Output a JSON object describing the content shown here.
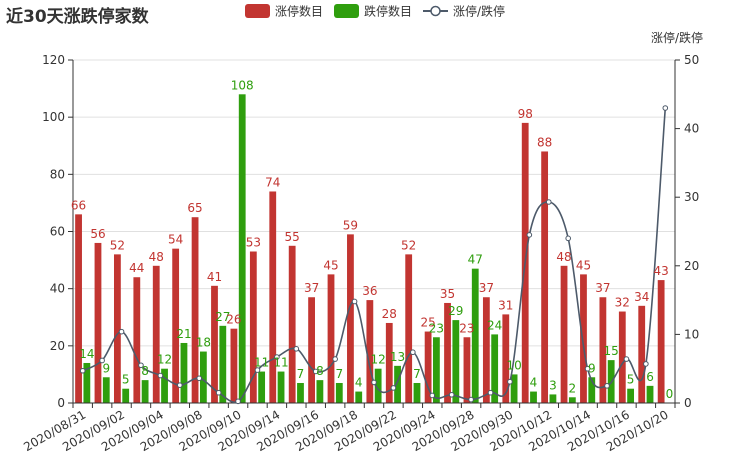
{
  "chart_data": {
    "type": "bar",
    "title": "近30天涨跌停家数",
    "colors": {
      "up": "#c23531",
      "down": "#2f9e0e",
      "ratio": "#4d5a6a"
    },
    "legend": {
      "position": "top-center"
    },
    "categories": [
      "2020/08/31",
      "2020/09/01",
      "2020/09/02",
      "2020/09/03",
      "2020/09/04",
      "2020/09/07",
      "2020/09/08",
      "2020/09/09",
      "2020/09/10",
      "2020/09/11",
      "2020/09/14",
      "2020/09/15",
      "2020/09/16",
      "2020/09/17",
      "2020/09/18",
      "2020/09/21",
      "2020/09/22",
      "2020/09/23",
      "2020/09/24",
      "2020/09/25",
      "2020/09/28",
      "2020/09/29",
      "2020/09/30",
      "2020/10/09",
      "2020/10/12",
      "2020/10/13",
      "2020/10/14",
      "2020/10/15",
      "2020/10/16",
      "2020/10/19",
      "2020/10/20"
    ],
    "x_tick_labels": [
      "2020/08/31",
      "2020/09/02",
      "2020/09/04",
      "2020/09/08",
      "2020/09/10",
      "2020/09/14",
      "2020/09/16",
      "2020/09/18",
      "2020/09/22",
      "2020/09/24",
      "2020/09/28",
      "2020/09/30",
      "2020/10/12",
      "2020/10/14",
      "2020/10/16",
      "2020/10/20"
    ],
    "series": [
      {
        "name": "涨停数目",
        "type": "bar",
        "axis": "left",
        "values": [
          66,
          56,
          52,
          44,
          48,
          54,
          65,
          41,
          26,
          53,
          74,
          55,
          37,
          45,
          59,
          36,
          28,
          52,
          25,
          35,
          23,
          37,
          31,
          98,
          88,
          48,
          45,
          37,
          32,
          34,
          43
        ]
      },
      {
        "name": "跌停数目",
        "type": "bar",
        "axis": "left",
        "values": [
          14,
          9,
          5,
          8,
          12,
          21,
          18,
          27,
          108,
          11,
          11,
          7,
          8,
          7,
          4,
          12,
          13,
          7,
          23,
          29,
          47,
          24,
          10,
          4,
          3,
          2,
          9,
          15,
          5,
          6,
          0
        ]
      },
      {
        "name": "涨停/跌停",
        "type": "line",
        "axis": "right",
        "values": [
          4.7,
          6.2,
          10.4,
          5.5,
          4.0,
          2.6,
          3.6,
          1.5,
          0.24,
          4.8,
          6.7,
          7.9,
          4.6,
          6.4,
          14.8,
          3.0,
          2.2,
          7.4,
          1.1,
          1.2,
          0.5,
          1.5,
          3.1,
          24.5,
          29.3,
          24.0,
          5.0,
          2.5,
          6.4,
          5.7,
          43.0
        ]
      }
    ],
    "y_left": {
      "min": 0,
      "max": 120,
      "ticks": [
        0,
        20,
        40,
        60,
        80,
        100,
        120
      ]
    },
    "y_right": {
      "name": "涨停/跌停",
      "min": 0,
      "max": 50,
      "ticks": [
        0,
        10,
        20,
        30,
        40,
        50
      ]
    }
  }
}
